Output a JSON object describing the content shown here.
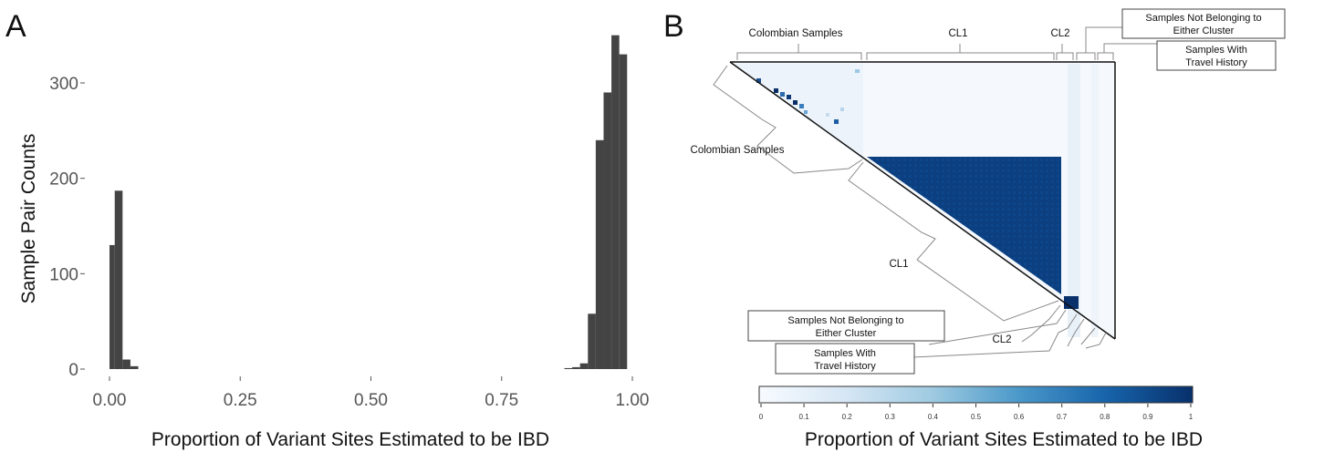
{
  "panels": {
    "a_letter": "A",
    "b_letter": "B"
  },
  "chart_data": [
    {
      "type": "bar",
      "panel": "A",
      "xlabel": "Proportion of Variant Sites Estimated to be IBD",
      "ylabel": "Sample Pair Counts",
      "xlim": [
        0,
        1
      ],
      "ylim": [
        0,
        350
      ],
      "xticks": [
        "0.00",
        "0.25",
        "0.50",
        "0.75",
        "1.00"
      ],
      "yticks": [
        "0",
        "100",
        "200",
        "300"
      ],
      "bins": [
        {
          "x0": 0.0,
          "x1": 0.01,
          "value": 130
        },
        {
          "x0": 0.01,
          "x1": 0.025,
          "value": 187
        },
        {
          "x0": 0.025,
          "x1": 0.04,
          "value": 10
        },
        {
          "x0": 0.04,
          "x1": 0.055,
          "value": 3
        },
        {
          "x0": 0.87,
          "x1": 0.885,
          "value": 1
        },
        {
          "x0": 0.885,
          "x1": 0.9,
          "value": 2
        },
        {
          "x0": 0.9,
          "x1": 0.915,
          "value": 6
        },
        {
          "x0": 0.915,
          "x1": 0.93,
          "value": 58
        },
        {
          "x0": 0.93,
          "x1": 0.945,
          "value": 240
        },
        {
          "x0": 0.945,
          "x1": 0.96,
          "value": 290
        },
        {
          "x0": 0.96,
          "x1": 0.975,
          "value": 350
        },
        {
          "x0": 0.975,
          "x1": 0.99,
          "value": 330
        }
      ],
      "bar_color": "#444444"
    },
    {
      "type": "heatmap",
      "panel": "B",
      "xlabel": "Proportion of Variant Sites Estimated to be IBD",
      "groups": [
        "Colombian Samples",
        "CL1",
        "CL2"
      ],
      "boxed_groups": [
        "Samples Not Belonging to Either Cluster",
        "Samples With Travel History"
      ],
      "colorbar_ticks": [
        "0",
        "0.1",
        "0.2",
        "0.3",
        "0.4",
        "0.5",
        "0.6",
        "0.7",
        "0.8",
        "0.9",
        "1"
      ],
      "colorscale": [
        "#f7fbff",
        "#08306b"
      ],
      "cl1_block_value": 0.85,
      "cl2_block_value": 0.95
    }
  ],
  "labels": {
    "colombian_top": "Colombian Samples",
    "cl1_top": "CL1",
    "cl2_top": "CL2",
    "not_belonging_top_1": "Samples Not Belonging to",
    "not_belonging_top_2": "Either Cluster",
    "travel_top_1": "Samples With",
    "travel_top_2": "Travel History",
    "colombian_diag": "Colombian Samples",
    "cl1_diag": "CL1",
    "cl2_diag": "CL2",
    "not_belonging_bottom_1": "Samples Not Belonging to",
    "not_belonging_bottom_2": "Either Cluster",
    "travel_bottom_1": "Samples With",
    "travel_bottom_2": "Travel History"
  }
}
